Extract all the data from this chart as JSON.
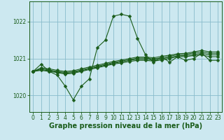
{
  "background_color": "#cce8f0",
  "grid_color": "#88bbcc",
  "line_color": "#1a5c1a",
  "ylim": [
    1019.55,
    1022.55
  ],
  "xlim": [
    -0.5,
    23.5
  ],
  "yticks": [
    1020,
    1021,
    1022
  ],
  "xticks": [
    0,
    1,
    2,
    3,
    4,
    5,
    6,
    7,
    8,
    9,
    10,
    11,
    12,
    13,
    14,
    15,
    16,
    17,
    18,
    19,
    20,
    21,
    22,
    23
  ],
  "xlabel": "Graphe pression niveau de la mer (hPa)",
  "series": [
    [
      1020.65,
      1020.85,
      1020.65,
      1020.55,
      1020.25,
      1019.88,
      1020.25,
      1020.45,
      1021.3,
      1021.5,
      1022.15,
      1022.2,
      1022.15,
      1021.55,
      1021.1,
      1020.9,
      1021.05,
      1020.9,
      1021.05,
      1020.95,
      1021.0,
      1021.15,
      1020.95,
      1020.95
    ],
    [
      1020.65,
      1020.68,
      1020.65,
      1020.62,
      1020.58,
      1020.6,
      1020.65,
      1020.7,
      1020.75,
      1020.8,
      1020.85,
      1020.88,
      1020.92,
      1020.95,
      1020.95,
      1020.93,
      1020.96,
      1021.0,
      1021.05,
      1021.05,
      1021.08,
      1021.1,
      1021.05,
      1021.05
    ],
    [
      1020.65,
      1020.7,
      1020.67,
      1020.63,
      1020.6,
      1020.62,
      1020.67,
      1020.72,
      1020.77,
      1020.82,
      1020.87,
      1020.91,
      1020.95,
      1020.98,
      1020.98,
      1020.96,
      1020.99,
      1021.03,
      1021.07,
      1021.08,
      1021.11,
      1021.14,
      1021.1,
      1021.1
    ],
    [
      1020.65,
      1020.72,
      1020.69,
      1020.65,
      1020.62,
      1020.64,
      1020.69,
      1020.74,
      1020.79,
      1020.84,
      1020.89,
      1020.93,
      1020.97,
      1021.01,
      1021.01,
      1020.99,
      1021.02,
      1021.06,
      1021.1,
      1021.11,
      1021.15,
      1021.18,
      1021.14,
      1021.14
    ],
    [
      1020.65,
      1020.75,
      1020.72,
      1020.68,
      1020.65,
      1020.67,
      1020.72,
      1020.77,
      1020.82,
      1020.87,
      1020.92,
      1020.96,
      1021.0,
      1021.04,
      1021.04,
      1021.02,
      1021.06,
      1021.09,
      1021.13,
      1021.14,
      1021.18,
      1021.22,
      1021.18,
      1021.18
    ]
  ],
  "marker_size": 2.5,
  "linewidth": 0.8,
  "tick_fontsize": 5.5,
  "label_fontsize": 7.0
}
